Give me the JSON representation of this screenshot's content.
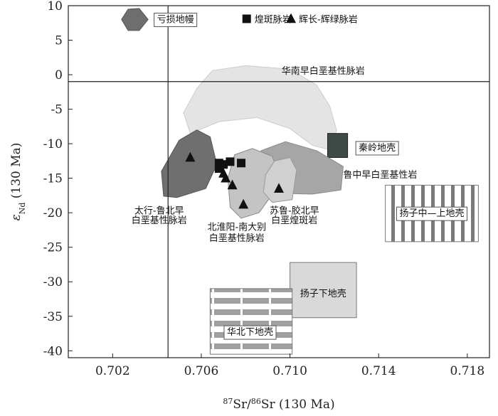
{
  "chart_data": {
    "type": "scatter",
    "xlabel_sup1": "87",
    "xlabel_mid": "Sr/",
    "xlabel_sup2": "86",
    "xlabel_end": "Sr (130 Ma)",
    "ylabel_sym": "ε",
    "ylabel_sub": "Nd",
    "ylabel_end": " (130 Ma)",
    "xlim": [
      0.7,
      0.719
    ],
    "ylim": [
      -41,
      10
    ],
    "xticks": [
      0.702,
      0.706,
      0.71,
      0.714,
      0.718
    ],
    "xtick_labels": [
      "0.702",
      "0.706",
      "0.710",
      "0.714",
      "0.718"
    ],
    "yticks": [
      10,
      5,
      0,
      -5,
      -10,
      -15,
      -20,
      -25,
      -30,
      -35,
      -40
    ],
    "ytick_labels": [
      "10",
      "5",
      "0",
      "-5",
      "-10",
      "-15",
      "-20",
      "-25",
      "-30",
      "-35",
      "-40"
    ],
    "reference_lines": {
      "x": 0.7045,
      "y": -1
    },
    "legend": [
      {
        "marker": "square",
        "label": "煌斑脉岩"
      },
      {
        "marker": "triangle",
        "label": "辉长-辉绿脉岩"
      }
    ],
    "series": [
      {
        "marker": "square",
        "points": [
          [
            0.7068,
            -12.8
          ],
          [
            0.7068,
            -13.6
          ],
          [
            0.707,
            -13.0
          ],
          [
            0.7073,
            -12.6
          ],
          [
            0.7078,
            -12.8
          ]
        ]
      },
      {
        "marker": "triangle",
        "points": [
          [
            0.7055,
            -12.0
          ],
          [
            0.707,
            -14.3
          ],
          [
            0.7071,
            -15.0
          ],
          [
            0.7074,
            -16.0
          ],
          [
            0.7079,
            -18.8
          ],
          [
            0.7095,
            -16.5
          ]
        ]
      }
    ],
    "regions": [
      {
        "label": "亏损地幔",
        "color": "#6e6e6e",
        "stroke": "#555555",
        "pattern": "none",
        "boxed_label": true,
        "outline": [
          [
            0.7024,
            8.0
          ],
          [
            0.7027,
            9.5
          ],
          [
            0.7032,
            9.6
          ],
          [
            0.7036,
            8.0
          ],
          [
            0.7032,
            6.4
          ],
          [
            0.7027,
            6.4
          ]
        ]
      },
      {
        "label": "华南早白垩基性脉岩",
        "color": "#e4e4e4",
        "stroke": "#cccccc",
        "pattern": "none",
        "boxed_label": false,
        "outline": [
          [
            0.7058,
            -2.0
          ],
          [
            0.7065,
            0.6
          ],
          [
            0.708,
            1.3
          ],
          [
            0.71,
            0.8
          ],
          [
            0.7112,
            -1.5
          ],
          [
            0.7118,
            -4.6
          ],
          [
            0.7121,
            -8.0
          ],
          [
            0.7119,
            -11.0
          ],
          [
            0.711,
            -10.2
          ],
          [
            0.71,
            -7.8
          ],
          [
            0.7085,
            -6.2
          ],
          [
            0.7068,
            -6.8
          ],
          [
            0.7055,
            -8.5
          ],
          [
            0.7052,
            -5.5
          ]
        ]
      },
      {
        "label": "秦岭地壳",
        "color": "#3f4a46",
        "stroke": "#222222",
        "pattern": "none",
        "boxed_label": true,
        "outline": [
          [
            0.7117,
            -8.5
          ],
          [
            0.7126,
            -8.5
          ],
          [
            0.7126,
            -12.0
          ],
          [
            0.7117,
            -12.0
          ]
        ]
      },
      {
        "label": "鲁中早白垩基性岩",
        "color": "#a6a6a6",
        "stroke": "#8a8a8a",
        "pattern": "none",
        "boxed_label": false,
        "outline": [
          [
            0.7087,
            -11.0
          ],
          [
            0.7098,
            -9.7
          ],
          [
            0.7112,
            -11.0
          ],
          [
            0.7124,
            -13.3
          ],
          [
            0.7123,
            -16.7
          ],
          [
            0.711,
            -17.3
          ],
          [
            0.7097,
            -17.2
          ],
          [
            0.7088,
            -15.5
          ],
          [
            0.7085,
            -13.0
          ]
        ]
      },
      {
        "label": "太行-鲁北早白垩基性脉岩",
        "color": "#6f6f6f",
        "stroke": "#555555",
        "pattern": "none",
        "boxed_label": false,
        "outline": [
          [
            0.705,
            -9.5
          ],
          [
            0.7058,
            -8.0
          ],
          [
            0.7064,
            -9.0
          ],
          [
            0.7067,
            -13.0
          ],
          [
            0.7062,
            -16.5
          ],
          [
            0.7049,
            -17.8
          ],
          [
            0.7043,
            -17.6
          ],
          [
            0.7042,
            -14.0
          ]
        ]
      },
      {
        "label": "北淮阳-南大别白垩基性脉岩",
        "color": "#c4c4c4",
        "stroke": "#8a8a8a",
        "pattern": "none",
        "boxed_label": false,
        "outline": [
          [
            0.7075,
            -11.6
          ],
          [
            0.7083,
            -10.7
          ],
          [
            0.7092,
            -11.8
          ],
          [
            0.7095,
            -14.6
          ],
          [
            0.7091,
            -17.8
          ],
          [
            0.7086,
            -20.0
          ],
          [
            0.7078,
            -20.8
          ],
          [
            0.7073,
            -19.2
          ],
          [
            0.7072,
            -15.0
          ]
        ]
      },
      {
        "label": "苏鲁-胶北早白垩煌斑岩",
        "color": "#d0d0d0",
        "stroke": "#999999",
        "pattern": "none",
        "boxed_label": false,
        "outline": [
          [
            0.7089,
            -14.5
          ],
          [
            0.7093,
            -12.5
          ],
          [
            0.71,
            -12.0
          ],
          [
            0.7103,
            -13.8
          ],
          [
            0.7101,
            -18.1
          ],
          [
            0.7092,
            -18.5
          ],
          [
            0.7088,
            -17.0
          ]
        ]
      },
      {
        "label": "扬子中—上地壳",
        "color": "#ffffff",
        "stroke": "#777777",
        "pattern": "vertical",
        "boxed_label": true,
        "outline": [
          [
            0.7143,
            -16.0
          ],
          [
            0.7185,
            -16.0
          ],
          [
            0.7185,
            -24.2
          ],
          [
            0.7143,
            -24.2
          ]
        ]
      },
      {
        "label": "扬子下地壳",
        "color": "#d9d9d9",
        "stroke": "#777777",
        "pattern": "none",
        "boxed_label": true,
        "outline": [
          [
            0.71,
            -27.2
          ],
          [
            0.713,
            -27.2
          ],
          [
            0.713,
            -35.2
          ],
          [
            0.71,
            -35.2
          ]
        ]
      },
      {
        "label": "华北下地壳",
        "color": "#ffffff",
        "stroke": "#777777",
        "pattern": "horizontal",
        "boxed_label": true,
        "outline": [
          [
            0.7064,
            -31.0
          ],
          [
            0.7101,
            -31.0
          ],
          [
            0.7101,
            -40.5
          ],
          [
            0.7064,
            -40.5
          ]
        ]
      }
    ],
    "labels": [
      {
        "text": "亏损地幔",
        "x": 0.704,
        "y": 8.1,
        "anchor": "start",
        "box": true
      },
      {
        "text": "煌斑脉岩",
        "x": 0.7084,
        "y": 8.1,
        "anchor": "start",
        "box": false
      },
      {
        "text": "辉长-辉绿脉岩",
        "x": 0.7104,
        "y": 8.1,
        "anchor": "start",
        "box": false
      },
      {
        "text": "华南早白垩基性脉岩",
        "x": 0.7115,
        "y": 0.6,
        "anchor": "middle",
        "box": false
      },
      {
        "text": "秦岭地壳",
        "x": 0.7131,
        "y": -10.5,
        "anchor": "start",
        "box": true
      },
      {
        "text": "鲁中早白垩基性岩",
        "x": 0.7124,
        "y": -14.4,
        "anchor": "start",
        "box": false
      },
      {
        "text": "太行-鲁北早",
        "x": 0.7041,
        "y": -19.6,
        "anchor": "middle",
        "box": false
      },
      {
        "text": "白垩基性脉岩",
        "x": 0.7041,
        "y": -21.0,
        "anchor": "middle",
        "box": false
      },
      {
        "text": "北淮阳-南大别",
        "x": 0.7076,
        "y": -22.0,
        "anchor": "middle",
        "box": false
      },
      {
        "text": "白垩基性脉岩",
        "x": 0.7076,
        "y": -23.6,
        "anchor": "middle",
        "box": false
      },
      {
        "text": "苏鲁-胶北早",
        "x": 0.7102,
        "y": -19.6,
        "anchor": "middle",
        "box": false
      },
      {
        "text": "白垩煌斑岩",
        "x": 0.7102,
        "y": -21.0,
        "anchor": "middle",
        "box": false
      },
      {
        "text": "扬子中—上地壳",
        "x": 0.7164,
        "y": -20.0,
        "anchor": "middle",
        "box": true
      },
      {
        "text": "扬子下地壳",
        "x": 0.7115,
        "y": -31.6,
        "anchor": "middle",
        "box": false
      },
      {
        "text": "华北下地壳",
        "x": 0.7082,
        "y": -37.2,
        "anchor": "middle",
        "box": true
      }
    ]
  }
}
